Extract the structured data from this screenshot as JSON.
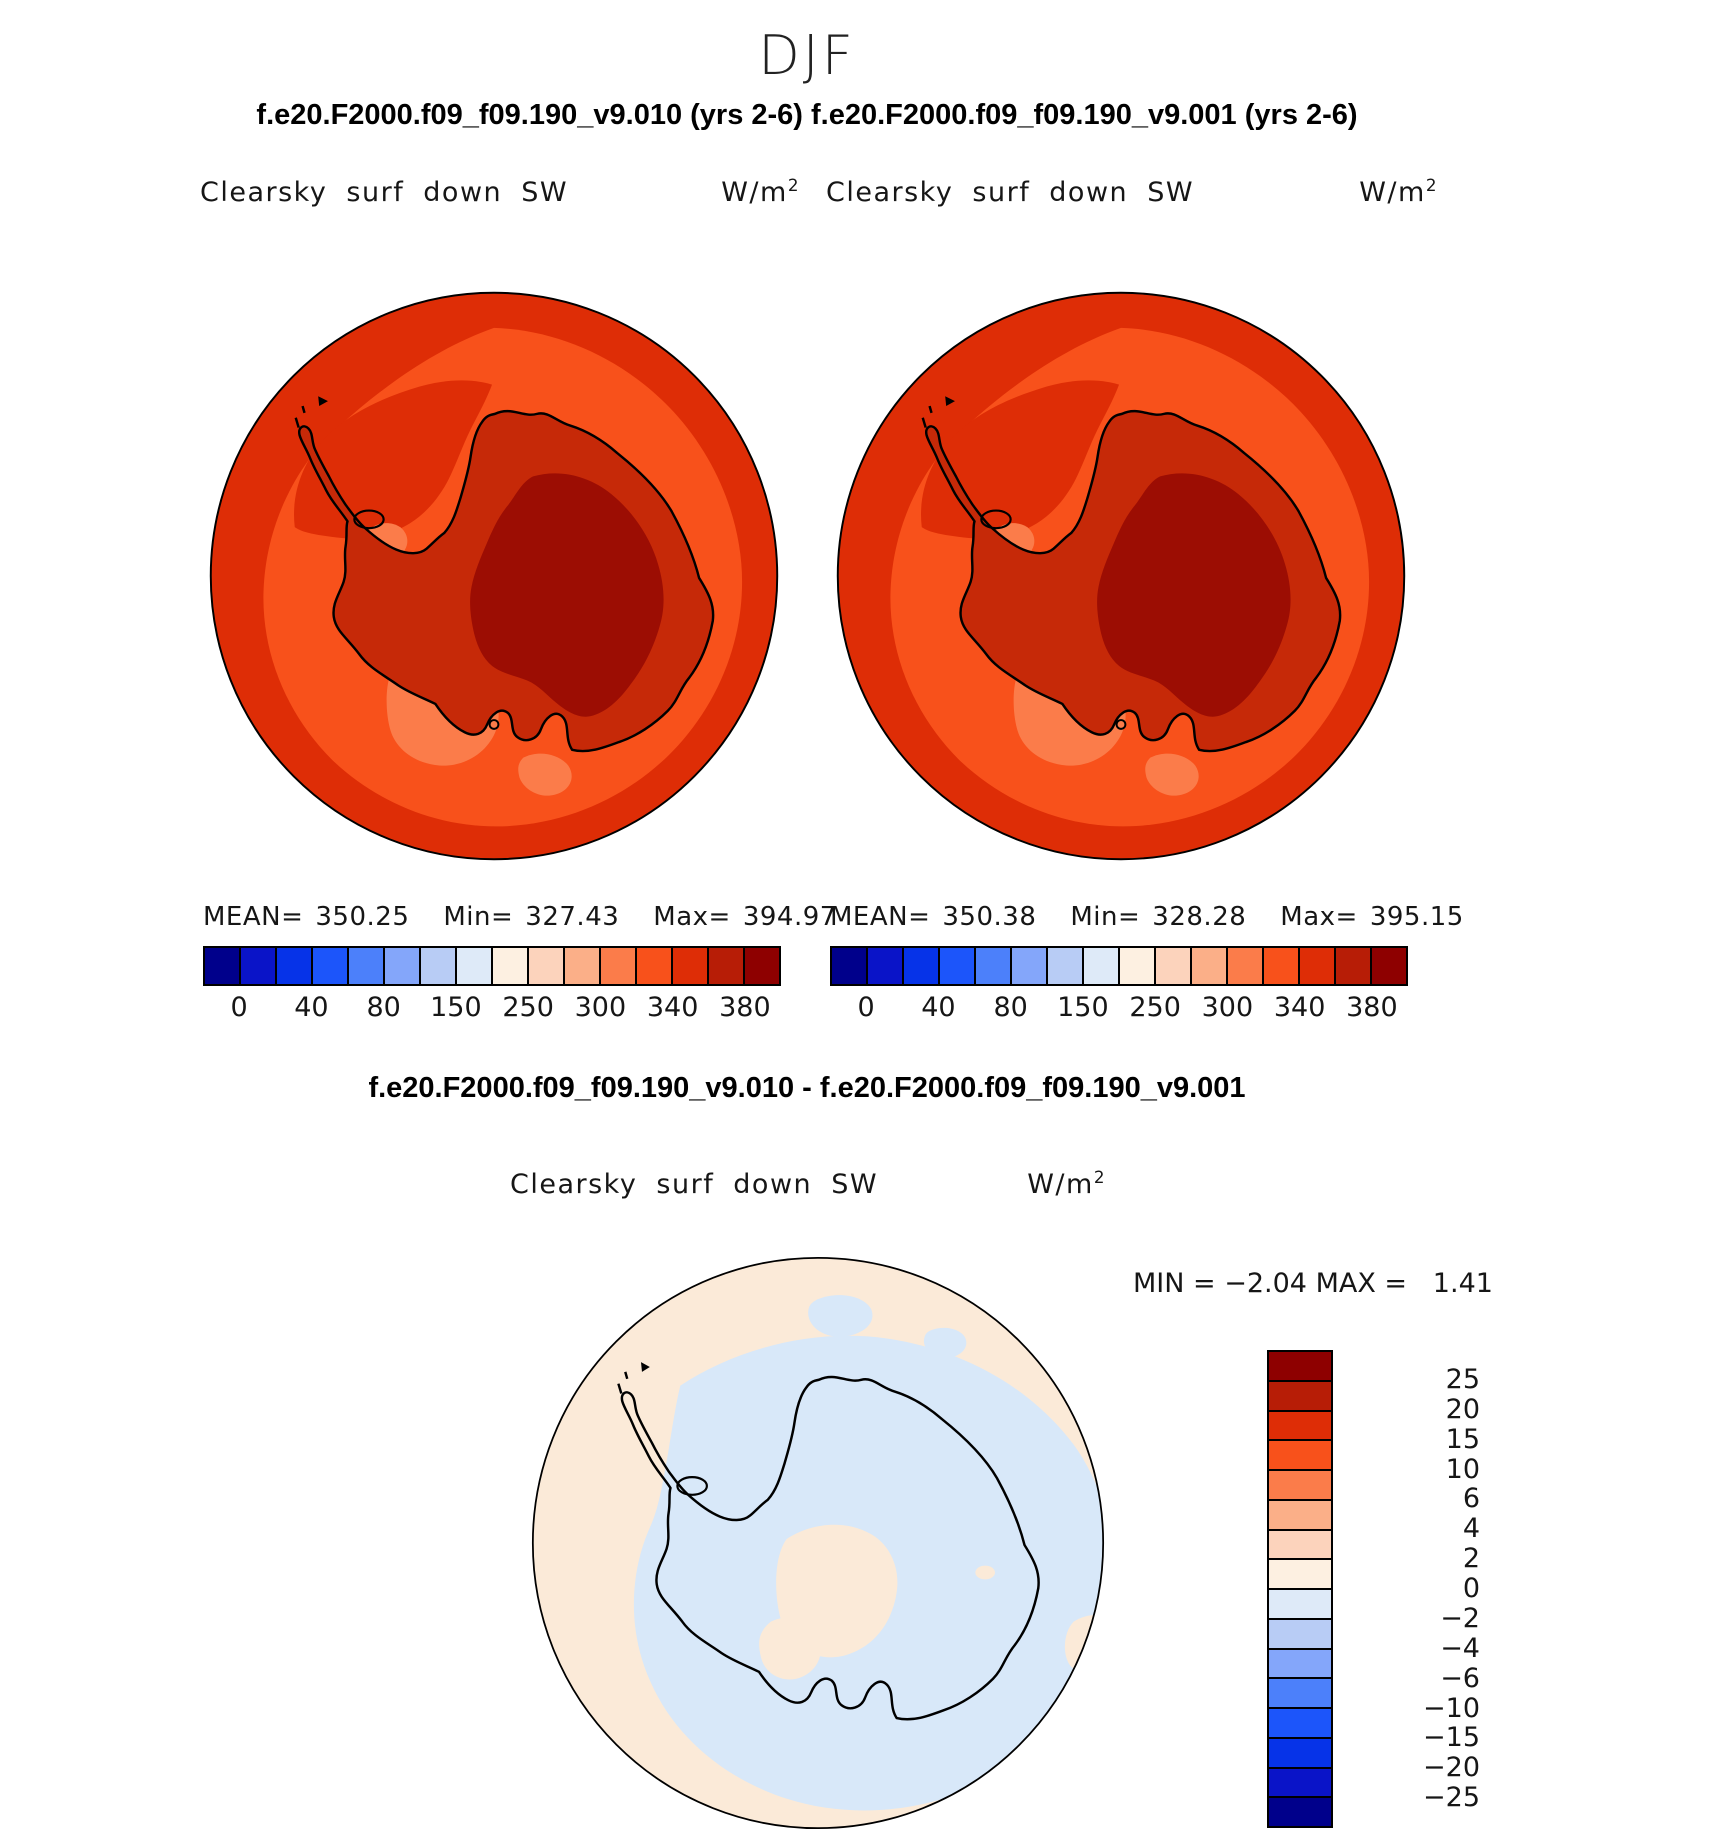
{
  "header": {
    "title": "DJF",
    "subtitle": "f.e20.F2000.f09_f09.190_v9.010 (yrs 2-6) f.e20.F2000.f09_f09.190_v9.001 (yrs 2-6)"
  },
  "panels": [
    {
      "title": "Clearsky surf down SW",
      "units_base": "W/m",
      "units_exp": "2",
      "stats": {
        "mean_label": "MEAN=",
        "mean": "350.25",
        "min_label": "Min=",
        "min": "327.43",
        "max_label": "Max=",
        "max": "394.97"
      }
    },
    {
      "title": "Clearsky surf down SW",
      "units_base": "W/m",
      "units_exp": "2",
      "stats": {
        "mean_label": "MEAN=",
        "mean": "350.38",
        "min_label": "Min=",
        "min": "328.28",
        "max_label": "Max=",
        "max": "395.15"
      }
    }
  ],
  "diff": {
    "title": "f.e20.F2000.f09_f09.190_v9.010 - f.e20.F2000.f09_f09.190_v9.001",
    "panel_title": "Clearsky surf down SW",
    "units_base": "W/m",
    "units_exp": "2",
    "min_label": "MIN = ",
    "min_value": "−2.04",
    "max_label": " MAX = ",
    "max_value": "  1.41"
  },
  "colorbar_h": {
    "colors": [
      "#00008B",
      "#0A14C8",
      "#0633E8",
      "#1C55FA",
      "#4C80FA",
      "#84A6FA",
      "#B8CCF5",
      "#DEEAF8",
      "#FDF0E1",
      "#FCD3BC",
      "#FBAF88",
      "#FB7C4A",
      "#F8511B",
      "#DE2D06",
      "#B71D06",
      "#8E0000"
    ],
    "tick_labels": [
      "0",
      "40",
      "80",
      "150",
      "250",
      "300",
      "340",
      "380"
    ],
    "tick_boundaries": [
      1,
      3,
      5,
      7,
      9,
      11,
      13,
      15
    ]
  },
  "colorbar_v": {
    "colors": [
      "#8E0000",
      "#B71D06",
      "#DE2D06",
      "#F8511B",
      "#FB7C4A",
      "#FBAF88",
      "#FCD3BC",
      "#FDF0E1",
      "#DEEAF8",
      "#B8CCF5",
      "#84A6FA",
      "#4C80FA",
      "#1C55FA",
      "#0633E8",
      "#0A14C8",
      "#00008B"
    ],
    "tick_labels": [
      "25",
      "20",
      "15",
      "10",
      "6",
      "4",
      "2",
      "0",
      "−2",
      "−4",
      "−6",
      "−10",
      "−15",
      "−20",
      "−25"
    ]
  },
  "map_colors": {
    "sw_outer": "#DE2D06",
    "sw_ring": "#F8511B",
    "sw_light": "#FB7C4A",
    "sw_land": "#C62908",
    "sw_plateau": "#9C0D03",
    "diff_pos": "#FBEAD8",
    "diff_neg": "#D8E8F9",
    "coast": "#000000"
  },
  "chart_data": [
    {
      "type": "heatmap",
      "subtype": "filled-contour-map",
      "projection": "south-polar-stereographic",
      "region": "Antarctica",
      "title": "Clearsky surf down SW",
      "case": "f.e20.F2000.f09_f09.190_v9.010 (yrs 2-6)",
      "season": "DJF",
      "units": "W/m^2",
      "mean": 350.25,
      "min": 327.43,
      "max": 394.97,
      "colorbar_ticks": [
        0,
        40,
        80,
        150,
        250,
        300,
        340,
        380
      ],
      "palette": [
        "#00008B",
        "#0A14C8",
        "#0633E8",
        "#1C55FA",
        "#4C80FA",
        "#84A6FA",
        "#B8CCF5",
        "#DEEAF8",
        "#FDF0E1",
        "#FCD3BC",
        "#FBAF88",
        "#FB7C4A",
        "#F8511B",
        "#DE2D06",
        "#B71D06",
        "#8E0000"
      ],
      "legend_position": "bottom"
    },
    {
      "type": "heatmap",
      "subtype": "filled-contour-map",
      "projection": "south-polar-stereographic",
      "region": "Antarctica",
      "title": "Clearsky surf down SW",
      "case": "f.e20.F2000.f09_f09.190_v9.001 (yrs 2-6)",
      "season": "DJF",
      "units": "W/m^2",
      "mean": 350.38,
      "min": 328.28,
      "max": 395.15,
      "colorbar_ticks": [
        0,
        40,
        80,
        150,
        250,
        300,
        340,
        380
      ],
      "palette": [
        "#00008B",
        "#0A14C8",
        "#0633E8",
        "#1C55FA",
        "#4C80FA",
        "#84A6FA",
        "#B8CCF5",
        "#DEEAF8",
        "#FDF0E1",
        "#FCD3BC",
        "#FBAF88",
        "#FB7C4A",
        "#F8511B",
        "#DE2D06",
        "#B71D06",
        "#8E0000"
      ],
      "legend_position": "bottom"
    },
    {
      "type": "heatmap",
      "subtype": "filled-contour-difference-map",
      "projection": "south-polar-stereographic",
      "region": "Antarctica",
      "title": "Clearsky surf down SW",
      "case": "f.e20.F2000.f09_f09.190_v9.010 - f.e20.F2000.f09_f09.190_v9.001",
      "season": "DJF",
      "units": "W/m^2",
      "min": -2.04,
      "max": 1.41,
      "colorbar_ticks": [
        25,
        20,
        15,
        10,
        6,
        4,
        2,
        0,
        -2,
        -4,
        -6,
        -10,
        -15,
        -20,
        -25
      ],
      "palette": [
        "#8E0000",
        "#B71D06",
        "#DE2D06",
        "#F8511B",
        "#FB7C4A",
        "#FBAF88",
        "#FCD3BC",
        "#FDF0E1",
        "#DEEAF8",
        "#B8CCF5",
        "#84A6FA",
        "#4C80FA",
        "#1C55FA",
        "#0633E8",
        "#0A14C8",
        "#00008B"
      ],
      "legend_position": "right"
    }
  ]
}
